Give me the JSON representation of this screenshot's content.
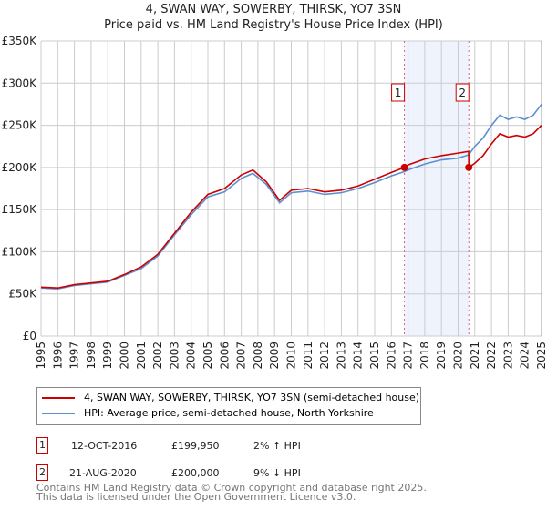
{
  "title": "4, SWAN WAY, SOWERBY, THIRSK, YO7 3SN",
  "subtitle": "Price paid vs. HM Land Registry's House Price Index (HPI)",
  "chart_data": {
    "type": "line",
    "xlim": [
      1995,
      2025
    ],
    "ylim": [
      0,
      350000
    ],
    "x_ticks": [
      "1995",
      "1996",
      "1997",
      "1998",
      "1999",
      "2000",
      "2001",
      "2002",
      "2003",
      "2004",
      "2005",
      "2006",
      "2007",
      "2008",
      "2009",
      "2010",
      "2011",
      "2012",
      "2013",
      "2014",
      "2015",
      "2016",
      "2017",
      "2018",
      "2019",
      "2020",
      "2021",
      "2022",
      "2023",
      "2024",
      "2025"
    ],
    "y_ticks": [
      {
        "v": 0,
        "label": "£0"
      },
      {
        "v": 50000,
        "label": "£50K"
      },
      {
        "v": 100000,
        "label": "£100K"
      },
      {
        "v": 150000,
        "label": "£150K"
      },
      {
        "v": 200000,
        "label": "£200K"
      },
      {
        "v": 250000,
        "label": "£250K"
      },
      {
        "v": 300000,
        "label": "£300K"
      },
      {
        "v": 350000,
        "label": "£350K"
      }
    ],
    "grid": true,
    "shaded_range": [
      2016.78,
      2020.64
    ],
    "series": [
      {
        "name": "4, SWAN WAY, SOWERBY, THIRSK, YO7 3SN (semi-detached house)",
        "color": "#cc0000",
        "x": [
          1995,
          1996,
          1997,
          1998,
          1999,
          2000,
          2001,
          2002,
          2003,
          2004,
          2005,
          2006,
          2007,
          2007.7,
          2008.5,
          2009.3,
          2010,
          2011,
          2012,
          2013,
          2014,
          2015,
          2016,
          2016.78,
          2017,
          2018,
          2019,
          2020,
          2020.63,
          2020.64,
          2021,
          2021.5,
          2022,
          2022.5,
          2023,
          2023.5,
          2024,
          2024.5,
          2025
        ],
        "y": [
          58000,
          57000,
          61000,
          63000,
          65000,
          73000,
          82000,
          97000,
          122000,
          147000,
          168000,
          175000,
          191000,
          197000,
          183000,
          161000,
          173000,
          175000,
          171000,
          173000,
          178000,
          186000,
          194000,
          199950,
          203000,
          210000,
          214000,
          217000,
          219000,
          200000,
          205000,
          214000,
          228000,
          240000,
          236000,
          238000,
          236000,
          240000,
          250000
        ]
      },
      {
        "name": "HPI: Average price, semi-detached house, North Yorkshire",
        "color": "#5b8fd0",
        "x": [
          1995,
          1996,
          1997,
          1998,
          1999,
          2000,
          2001,
          2002,
          2003,
          2004,
          2005,
          2006,
          2007,
          2007.7,
          2008.5,
          2009.3,
          2010,
          2011,
          2012,
          2013,
          2014,
          2015,
          2016,
          2016.78,
          2017,
          2018,
          2019,
          2020,
          2020.64,
          2021,
          2021.5,
          2022,
          2022.5,
          2023,
          2023.5,
          2024,
          2024.5,
          2025
        ],
        "y": [
          57000,
          56000,
          60000,
          62000,
          64000,
          72000,
          80000,
          95000,
          120000,
          144000,
          165000,
          171000,
          187000,
          193000,
          180000,
          158000,
          170000,
          172000,
          168000,
          170000,
          175000,
          182000,
          190000,
          195000,
          197000,
          204000,
          209000,
          211000,
          215000,
          225000,
          235000,
          250000,
          262000,
          257000,
          260000,
          257000,
          262000,
          275000
        ]
      }
    ],
    "sales": [
      {
        "label": "1",
        "x": 2016.78,
        "y": 199950
      },
      {
        "label": "2",
        "x": 2020.64,
        "y": 200000
      }
    ]
  },
  "legend": [
    "4, SWAN WAY, SOWERBY, THIRSK, YO7 3SN (semi-detached house)",
    "HPI: Average price, semi-detached house, North Yorkshire"
  ],
  "table": [
    {
      "num": "1",
      "date": "12-OCT-2016",
      "price": "£199,950",
      "hpi": "2% ↑ HPI"
    },
    {
      "num": "2",
      "date": "21-AUG-2020",
      "price": "£200,000",
      "hpi": "9% ↓ HPI"
    }
  ],
  "footer": [
    "Contains HM Land Registry data © Crown copyright and database right 2025.",
    "This data is licensed under the Open Government Licence v3.0."
  ]
}
